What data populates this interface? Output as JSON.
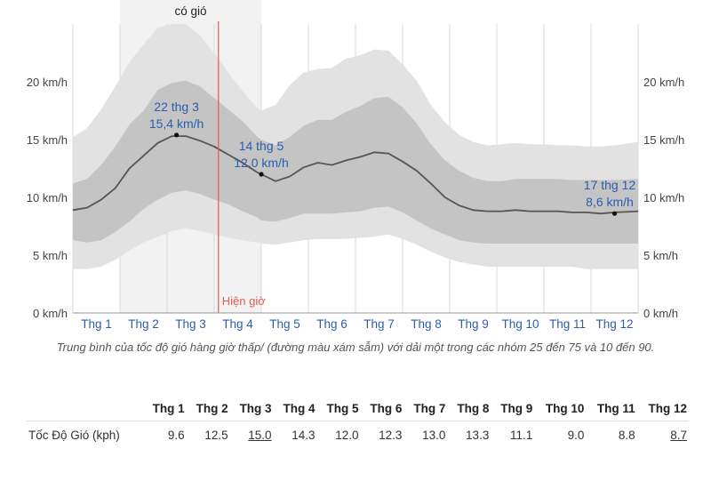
{
  "chart_data": {
    "type": "area",
    "y_unit": "km/h",
    "ylim": [
      0,
      25
    ],
    "y_ticks": [
      0,
      5,
      10,
      15,
      20
    ],
    "y_tick_labels": [
      "0 km/h",
      "5 km/h",
      "10 km/h",
      "15 km/h",
      "20 km/h"
    ],
    "month_labels": [
      "Thg 1",
      "Thg 2",
      "Thg 3",
      "Thg 4",
      "Thg 5",
      "Thg 6",
      "Thg 7",
      "Thg 8",
      "Thg 9",
      "Thg 10",
      "Thg 11",
      "Thg 12"
    ],
    "windy_season": {
      "label": "có gió",
      "start_month": 2.0,
      "end_month": 5.0
    },
    "current_date": {
      "label": "Hiện giờ",
      "month": 4.09
    },
    "series": {
      "x_month": [
        1.0,
        1.3,
        1.6,
        1.9,
        2.2,
        2.5,
        2.8,
        3.1,
        3.4,
        3.7,
        4.0,
        4.3,
        4.6,
        4.9,
        5.0,
        5.3,
        5.6,
        5.9,
        6.2,
        6.5,
        6.8,
        7.1,
        7.4,
        7.7,
        8.0,
        8.3,
        8.6,
        8.9,
        9.2,
        9.5,
        9.8,
        10.1,
        10.4,
        10.7,
        11.0,
        11.3,
        11.6,
        11.9,
        12.2,
        12.5,
        13.0
      ],
      "median": [
        8.9,
        9.1,
        9.8,
        10.8,
        12.5,
        13.6,
        14.7,
        15.3,
        15.3,
        14.9,
        14.4,
        13.7,
        13.0,
        12.2,
        12.0,
        11.4,
        11.8,
        12.6,
        13.0,
        12.8,
        13.2,
        13.5,
        13.9,
        13.8,
        13.1,
        12.3,
        11.2,
        10.0,
        9.3,
        8.9,
        8.8,
        8.8,
        8.9,
        8.8,
        8.8,
        8.8,
        8.7,
        8.7,
        8.6,
        8.7,
        8.8
      ],
      "p25": [
        6.3,
        6.1,
        6.3,
        7.0,
        7.9,
        9.0,
        9.8,
        10.4,
        10.6,
        10.3,
        9.8,
        9.4,
        8.8,
        8.3,
        8.0,
        7.9,
        8.2,
        8.6,
        8.6,
        8.6,
        8.7,
        8.8,
        9.1,
        9.2,
        8.7,
        8.0,
        7.3,
        6.8,
        6.3,
        6.1,
        6.0,
        6.0,
        6.0,
        6.0,
        6.0,
        6.0,
        6.0,
        6.0,
        6.0,
        6.0,
        6.0
      ],
      "p75": [
        11.2,
        11.6,
        12.8,
        14.4,
        16.3,
        17.5,
        19.3,
        19.9,
        20.1,
        19.6,
        18.6,
        17.6,
        16.6,
        15.3,
        15.0,
        14.5,
        15.2,
        16.2,
        16.7,
        16.7,
        17.4,
        17.9,
        18.6,
        18.7,
        17.8,
        16.4,
        14.6,
        13.2,
        12.3,
        11.7,
        11.4,
        11.4,
        11.6,
        11.6,
        11.6,
        11.6,
        11.5,
        11.5,
        11.5,
        11.5,
        11.6
      ],
      "p10": [
        3.8,
        3.8,
        4.0,
        4.6,
        5.4,
        6.1,
        6.6,
        7.1,
        7.3,
        7.1,
        6.8,
        6.5,
        6.3,
        6.1,
        6.0,
        5.9,
        6.1,
        6.3,
        6.4,
        6.4,
        6.4,
        6.5,
        6.6,
        6.8,
        6.4,
        5.9,
        5.3,
        4.8,
        4.4,
        4.2,
        4.0,
        4.0,
        4.0,
        4.0,
        4.0,
        4.0,
        4.0,
        3.8,
        3.8,
        3.8,
        3.8
      ],
      "p90": [
        15.2,
        16.0,
        17.6,
        19.6,
        21.7,
        23.2,
        24.7,
        25.0,
        25.0,
        24.0,
        22.5,
        20.8,
        19.2,
        17.8,
        17.5,
        18.0,
        19.7,
        20.8,
        21.1,
        21.2,
        22.0,
        22.3,
        22.8,
        22.7,
        21.5,
        20.1,
        18.0,
        16.5,
        15.4,
        14.8,
        14.5,
        14.6,
        14.7,
        14.6,
        14.6,
        14.5,
        14.5,
        14.4,
        14.4,
        14.5,
        14.8
      ]
    },
    "annotations": [
      {
        "date_label": "22 thg 3",
        "value_label": "15,4 km/h",
        "month": 3.2,
        "value": 15.4
      },
      {
        "date_label": "14 thg 5",
        "value_label": "12,0 km/h",
        "month": 5.0,
        "value": 12.0
      },
      {
        "date_label": "17 thg 12",
        "value_label": "8,6 km/h",
        "month": 12.5,
        "value": 8.6
      }
    ],
    "colors": {
      "band_10_90": "#e2e2e2",
      "band_25_75": "#c4c4c4",
      "median_line": "#555555",
      "windy_season": "#f2f2f2",
      "now_line": "#e05a5a",
      "month_label": "#2a5db0",
      "annotation": "#2a5db0"
    }
  },
  "caption": "Trung bình của tốc độ gió hàng giờ thấp/ (đường màu xám sẫm) với dải một trong các nhóm 25 đến 75 và 10 đến 90.",
  "table": {
    "headers": [
      "Thg 1",
      "Thg 2",
      "Thg 3",
      "Thg 4",
      "Thg 5",
      "Thg 6",
      "Thg 7",
      "Thg 8",
      "Thg 9",
      "Thg 10",
      "Thg 11",
      "Thg 12"
    ],
    "row_label": "Tốc Độ Gió (kph)",
    "values": [
      "9.6",
      "12.5",
      "15.0",
      "14.3",
      "12.0",
      "12.3",
      "13.0",
      "13.3",
      "11.1",
      "9.0",
      "8.8",
      "8.7"
    ],
    "highlight_max_index": 2,
    "highlight_min_index": 11
  }
}
